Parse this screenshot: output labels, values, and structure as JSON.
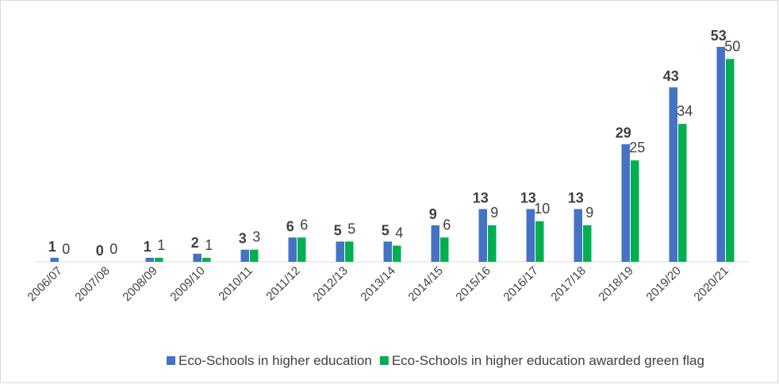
{
  "chart_data": {
    "type": "bar",
    "categories": [
      "2006/07",
      "2007/08",
      "2008/09",
      "2009/10",
      "2010/11",
      "2011/12",
      "2012/13",
      "2013/14",
      "2014/15",
      "2015/16",
      "2016/17",
      "2017/18",
      "2018/19",
      "2019/20",
      "2020/21"
    ],
    "series": [
      {
        "name": "Eco-Schools in higher education",
        "color": "#4472c4",
        "values": [
          1,
          0,
          1,
          2,
          3,
          6,
          5,
          5,
          9,
          13,
          13,
          13,
          29,
          43,
          53
        ]
      },
      {
        "name": "Eco-Schools in higher education awarded green flag",
        "color": "#00b050",
        "values": [
          0,
          0,
          1,
          1,
          3,
          6,
          5,
          4,
          6,
          9,
          10,
          9,
          25,
          34,
          50
        ]
      }
    ],
    "legend": "bottom"
  }
}
